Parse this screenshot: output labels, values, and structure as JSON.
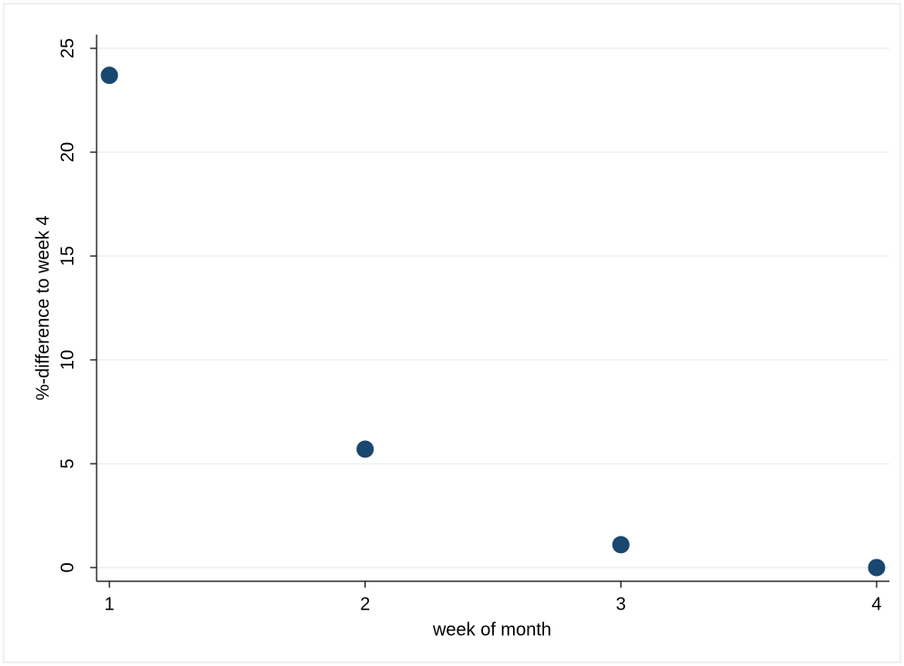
{
  "chart_data": {
    "type": "scatter",
    "x_label": "week of month",
    "y_label": "%-difference to week 4",
    "x": [
      1,
      2,
      3,
      4
    ],
    "series": [
      {
        "color": "#1a476f",
        "values": [
          23.7,
          5.7,
          1.1,
          0
        ]
      }
    ],
    "xlim": [
      0.95,
      4.05
    ],
    "ylim": [
      -0.66,
      25.66
    ],
    "xticks": [
      1,
      2,
      3,
      4
    ],
    "yticks": [
      0,
      5,
      10,
      15,
      20,
      25
    ],
    "grid": true
  }
}
